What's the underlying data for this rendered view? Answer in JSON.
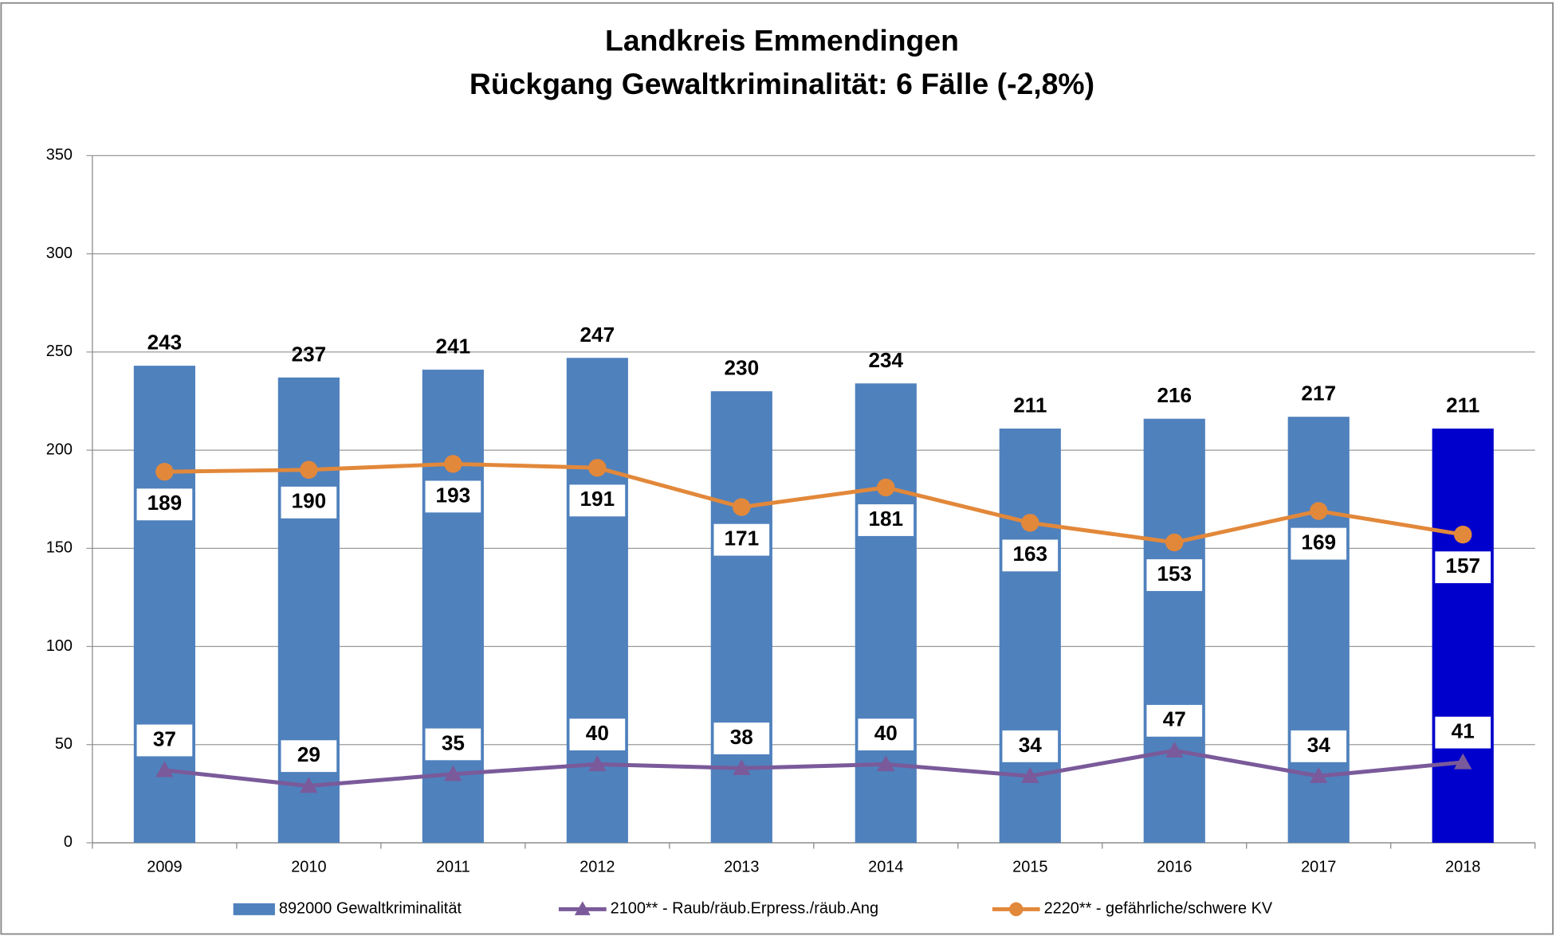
{
  "chart_data": {
    "type": "bar",
    "title": "Landkreis Emmendingen",
    "subtitle": "Rückgang Gewaltkriminalität: 6 Fälle (-2,8%)",
    "categories": [
      "2009",
      "2010",
      "2011",
      "2012",
      "2013",
      "2014",
      "2015",
      "2016",
      "2017",
      "2018"
    ],
    "series": [
      {
        "name": "892000 Gewaltkriminalität",
        "type": "bar",
        "color": "#4f81bd",
        "colors": [
          "#4f81bd",
          "#4f81bd",
          "#4f81bd",
          "#4f81bd",
          "#4f81bd",
          "#4f81bd",
          "#4f81bd",
          "#4f81bd",
          "#4f81bd",
          "#0000cc"
        ],
        "values": [
          243,
          237,
          241,
          247,
          230,
          234,
          211,
          216,
          217,
          211
        ]
      },
      {
        "name": "2100** - Raub/räub.Erpress./räub.Ang",
        "type": "line",
        "marker": "triangle",
        "color": "#7a5a9a",
        "values": [
          37,
          29,
          35,
          40,
          38,
          40,
          34,
          47,
          34,
          41
        ]
      },
      {
        "name": "2220** - gefährliche/schwere KV",
        "type": "line",
        "marker": "circle",
        "color": "#e2883a",
        "values": [
          189,
          190,
          193,
          191,
          171,
          181,
          163,
          153,
          169,
          157
        ]
      }
    ],
    "ylim": [
      0,
      350
    ],
    "yticks": [
      0,
      50,
      100,
      150,
      200,
      250,
      300,
      350
    ],
    "grid": true,
    "legend": "bottom"
  }
}
